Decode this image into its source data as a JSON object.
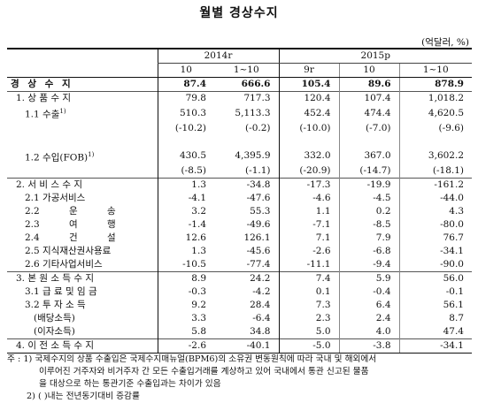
{
  "title": "월별 경상수지",
  "unit": "(억달러, %)",
  "header": {
    "year_2014": "2014r",
    "year_2015": "2015p",
    "cols": [
      "10",
      "1~10",
      "9r",
      "10",
      "1~10"
    ]
  },
  "rows": [
    {
      "label": "경 상 수 지",
      "v": [
        "87.4",
        "666.6",
        "105.4",
        "89.6",
        "878.9"
      ]
    },
    {
      "label": "1. 상 품 수 지",
      "v": [
        "79.8",
        "717.3",
        "120.4",
        "107.4",
        "1,018.2"
      ]
    },
    {
      "label": "1.1 수출",
      "sup": "1)",
      "v": [
        "510.3",
        "5,113.3",
        "452.4",
        "474.4",
        "4,620.5"
      ]
    },
    {
      "label": "",
      "v": [
        "(-10.2)",
        "(-0.2)",
        "(-10.0)",
        "(-7.0)",
        "(-9.6)"
      ]
    },
    {
      "label": "",
      "v": [
        "",
        "",
        "",
        "",
        ""
      ]
    },
    {
      "label": "1.2 수입(FOB)",
      "sup": "1)",
      "v": [
        "430.5",
        "4,395.9",
        "332.0",
        "367.0",
        "3,602.2"
      ]
    },
    {
      "label": "",
      "v": [
        "(-8.5)",
        "(-1.1)",
        "(-20.9)",
        "(-14.7)",
        "(-18.1)"
      ]
    },
    {
      "label": "2. 서 비 스 수 지",
      "v": [
        "1.3",
        "-34.8",
        "-17.3",
        "-19.9",
        "-161.2"
      ]
    },
    {
      "label": "2.1 가공서비스",
      "v": [
        "-4.1",
        "-47.6",
        "-4.6",
        "-4.5",
        "-44.0"
      ]
    },
    {
      "label": "2.2 운 송",
      "v": [
        "3.2",
        "55.3",
        "1.1",
        "0.2",
        "4.3"
      ]
    },
    {
      "label": "2.3 여 행",
      "v": [
        "-1.4",
        "-49.6",
        "-7.1",
        "-8.5",
        "-80.0"
      ]
    },
    {
      "label": "2.4 건 설",
      "v": [
        "12.6",
        "126.1",
        "7.1",
        "7.9",
        "76.7"
      ]
    },
    {
      "label": "2.5 지식재산권사용료",
      "v": [
        "1.3",
        "-45.6",
        "-2.6",
        "-6.8",
        "-34.1"
      ]
    },
    {
      "label": "2.6 기타사업서비스",
      "v": [
        "-10.5",
        "-77.4",
        "-11.1",
        "-9.4",
        "-90.0"
      ]
    },
    {
      "label": "3. 본 원 소 득 수 지",
      "v": [
        "8.9",
        "24.2",
        "7.4",
        "5.9",
        "56.0"
      ]
    },
    {
      "label": "3.1 급 료 및 임 금",
      "v": [
        "-0.3",
        "-4.2",
        "0.1",
        "-0.4",
        "-0.1"
      ]
    },
    {
      "label": "3.2 투 자 소 득",
      "v": [
        "9.2",
        "28.4",
        "7.3",
        "6.4",
        "56.1"
      ]
    },
    {
      "label": "(배당소득)",
      "v": [
        "3.3",
        "-6.4",
        "2.3",
        "2.4",
        "8.7"
      ]
    },
    {
      "label": "(이자소득)",
      "v": [
        "5.8",
        "34.8",
        "5.0",
        "4.0",
        "47.4"
      ]
    },
    {
      "label": "4. 이 전 소 득 수 지",
      "v": [
        "-2.6",
        "-40.1",
        "-5.0",
        "-3.8",
        "-34.1"
      ]
    }
  ],
  "notes": {
    "n1_prefix": "주 : 1)",
    "n1_line1": "국제수지의 상품 수출입은 국제수지매뉴얼(BPM6)의 소유권 변동원칙에 따라 국내 및 해외에서",
    "n1_line2": "이루어진 거주자와 비거주자 간 모든 수출입거래를 계상하고 있어 국내에서 통관 신고된 물품",
    "n1_line3": "을 대상으로 하는 통관기준 수출입과는 차이가 있음",
    "n2": "2) ( )내는 전년동기대비 증감률"
  }
}
